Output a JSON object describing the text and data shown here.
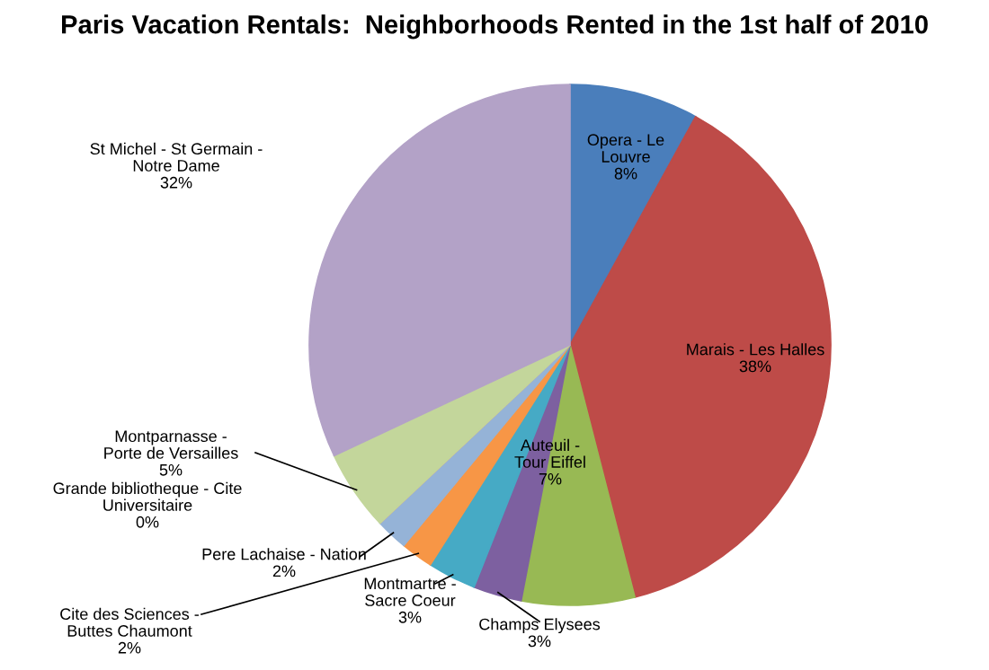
{
  "chart_data": {
    "type": "pie",
    "title": "Paris Vacation Rentals:  Neighborhoods Rented in the 1st half of 2010",
    "categories": [
      "Opera - Le Louvre",
      "Marais - Les Halles",
      "Auteuil - Tour Eiffel",
      "Champs Elysees",
      "Montmartre - Sacre Coeur",
      "Cite des Sciences - Buttes Chaumont",
      "Pere Lachaise - Nation",
      "Grande bibliotheque - Cite Universitaire",
      "Montparnasse - Porte de Versailles",
      "St Michel - St Germain - Notre Dame"
    ],
    "values": [
      8,
      38,
      7,
      3,
      3,
      2,
      2,
      0,
      5,
      32
    ],
    "value_labels": [
      "8%",
      "38%",
      "7%",
      "3%",
      "3%",
      "2%",
      "2%",
      "0%",
      "5%",
      "32%"
    ],
    "colors": [
      "#4a7ebb",
      "#be4b48",
      "#98b954",
      "#7d60a0",
      "#46aac5",
      "#f79646",
      "#95b3d7",
      "#d99694",
      "#c3d69b",
      "#b3a2c7"
    ]
  }
}
